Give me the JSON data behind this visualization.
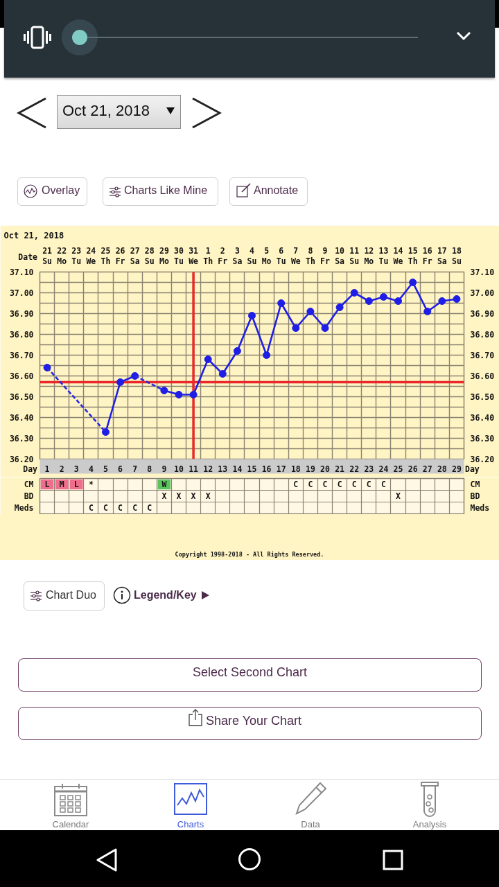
{
  "chart_data": [
    {
      "type": "other",
      "annotations": [
        "Oct 21, 2018",
        "Overlay",
        "Charts Like Mine",
        "Annotate"
      ]
    },
    {
      "type": "line",
      "title": "Oct 21, 2018",
      "xlabel": "Day",
      "x2label": "Date",
      "x": [
        1,
        2,
        3,
        4,
        5,
        6,
        7,
        8,
        9,
        10,
        11,
        12,
        13,
        14,
        15,
        16,
        17,
        18,
        19,
        20,
        21,
        22,
        23,
        24,
        25,
        26,
        27,
        28,
        29
      ],
      "xlim": [
        0.5,
        29.5
      ],
      "xticks": [
        1,
        2,
        3,
        4,
        5,
        6,
        7,
        8,
        9,
        10,
        11,
        12,
        13,
        14,
        15,
        16,
        17,
        18,
        19,
        20,
        21,
        22,
        23,
        24,
        25,
        26,
        27,
        28,
        29
      ],
      "x2lim": [
        "2018-10-20T12:00",
        "2018-11-18T12:00"
      ],
      "x2ticks": [
        {
          "value": "2018-10-21",
          "label": "21\nSu"
        },
        {
          "value": "2018-10-22",
          "label": "22\nMo"
        },
        {
          "value": "2018-10-23",
          "label": "23\nTu"
        },
        {
          "value": "2018-10-24",
          "label": "24\nWe"
        },
        {
          "value": "2018-10-25",
          "label": "25\nTh"
        },
        {
          "value": "2018-10-26",
          "label": "26\nFr"
        },
        {
          "value": "2018-10-27",
          "label": "27\nSa"
        },
        {
          "value": "2018-10-28",
          "label": "28\nSu"
        },
        {
          "value": "2018-10-29",
          "label": "29\nMo"
        },
        {
          "value": "2018-10-30",
          "label": "30\nTu"
        },
        {
          "value": "2018-10-31",
          "label": "31\nWe"
        },
        {
          "value": "2018-11-01",
          "label": "1\nTh"
        },
        {
          "value": "2018-11-02",
          "label": "2\nFr"
        },
        {
          "value": "2018-11-03",
          "label": "3\nSa"
        },
        {
          "value": "2018-11-04",
          "label": "4\nSu"
        },
        {
          "value": "2018-11-05",
          "label": "5\nMo"
        },
        {
          "value": "2018-11-06",
          "label": "6\nTu"
        },
        {
          "value": "2018-11-07",
          "label": "7\nWe"
        },
        {
          "value": "2018-11-08",
          "label": "8\nTh"
        },
        {
          "value": "2018-11-09",
          "label": "9\nFr"
        },
        {
          "value": "2018-11-10",
          "label": "10\nSa"
        },
        {
          "value": "2018-11-11",
          "label": "11\nSu"
        },
        {
          "value": "2018-11-12",
          "label": "12\nMo"
        },
        {
          "value": "2018-11-13",
          "label": "13\nTu"
        },
        {
          "value": "2018-11-14",
          "label": "14\nWe"
        },
        {
          "value": "2018-11-15",
          "label": "15\nTh"
        },
        {
          "value": "2018-11-16",
          "label": "16\nFr"
        },
        {
          "value": "2018-11-17",
          "label": "17\nSa"
        },
        {
          "value": "2018-11-18",
          "label": "18\nSu"
        }
      ],
      "ylim": [
        36.2,
        37.1
      ],
      "yticks": [
        {
          "value": 36.2,
          "label": "36.20"
        },
        {
          "value": 36.3,
          "label": "36.30"
        },
        {
          "value": 36.4,
          "label": "36.40"
        },
        {
          "value": 36.5,
          "label": "36.50"
        },
        {
          "value": 36.6,
          "label": "36.60"
        },
        {
          "value": 36.7,
          "label": "36.70"
        },
        {
          "value": 36.8,
          "label": "36.80"
        },
        {
          "value": 36.9,
          "label": "36.90"
        },
        {
          "value": 37.0,
          "label": "37.00"
        },
        {
          "value": 37.1,
          "label": "37.10"
        }
      ],
      "y2lim": [
        36.2,
        37.1
      ],
      "y2ticks": [
        {
          "value": 36.2,
          "label": "36.20"
        },
        {
          "value": 36.3,
          "label": "36.30"
        },
        {
          "value": 36.4,
          "label": "36.40"
        },
        {
          "value": 36.5,
          "label": "36.50"
        },
        {
          "value": 36.6,
          "label": "36.60"
        },
        {
          "value": 36.7,
          "label": "36.70"
        },
        {
          "value": 36.8,
          "label": "36.80"
        },
        {
          "value": 36.9,
          "label": "36.90"
        },
        {
          "value": 37.0,
          "label": "37.00"
        },
        {
          "value": 37.1,
          "label": "37.10"
        }
      ],
      "grid": true,
      "marker": "circle",
      "line_style": "solid",
      "series": [
        {
          "color": "#1e1ee6",
          "values": [
            36.64,
            null,
            null,
            null,
            36.33,
            36.57,
            36.6,
            null,
            36.53,
            36.51,
            36.51,
            36.68,
            36.61,
            36.72,
            36.89,
            36.7,
            36.95,
            36.83,
            36.91,
            36.83,
            36.93,
            37.0,
            36.96,
            36.98,
            36.96,
            37.05,
            36.91,
            36.96,
            36.97
          ]
        },
        {
          "color": "#2a2ae0",
          "x": [
            1,
            5,
            6,
            7,
            9
          ],
          "values": [
            36.64,
            36.33,
            null,
            36.6,
            36.53
          ],
          "line_style": "dashed",
          "marker": "none"
        }
      ],
      "ref_lines": [
        {
          "axis": "x",
          "value": 11,
          "color": "#e8282a"
        },
        {
          "axis": "y",
          "value": 36.57,
          "color": "#e8282a"
        }
      ]
    },
    {
      "type": "other",
      "categories": [
        null,
        null,
        null,
        null,
        null,
        null,
        null,
        null,
        null,
        null,
        null,
        null,
        null,
        null,
        null,
        null,
        null,
        null,
        null,
        null,
        null,
        null,
        null,
        null,
        null,
        null,
        null,
        null,
        null
      ],
      "y_categories": [
        "CM",
        "BD",
        "Meds"
      ],
      "y2_categories": [
        "CM",
        "BD",
        "Meds"
      ],
      "cell_labels": [
        [
          "L",
          "M",
          "L",
          "*",
          null,
          null,
          null,
          null,
          "W",
          null,
          null,
          null,
          null,
          null,
          null,
          null,
          null,
          "C",
          "C",
          "C",
          "C",
          "C",
          "C",
          "C",
          null,
          null,
          null,
          null,
          null
        ],
        [
          null,
          null,
          null,
          null,
          null,
          null,
          null,
          null,
          "X",
          "X",
          "X",
          "X",
          null,
          null,
          null,
          null,
          null,
          null,
          null,
          null,
          null,
          null,
          null,
          null,
          "X",
          null,
          null,
          null,
          null
        ],
        [
          null,
          null,
          null,
          "C",
          "C",
          "C",
          "C",
          "C",
          null,
          null,
          null,
          null,
          null,
          null,
          null,
          null,
          null,
          null,
          null,
          null,
          null,
          null,
          null,
          null,
          null,
          null,
          null,
          null,
          null
        ]
      ],
      "colors": [
        [
          "#ee6e8c",
          "#ee6e8c",
          "#ee6e8c",
          null,
          null,
          null,
          null,
          null,
          "#5cc45c",
          null,
          null,
          null,
          null,
          null,
          null,
          null,
          null,
          null,
          null,
          null,
          null,
          null,
          null,
          null,
          null,
          null,
          null,
          null,
          null
        ],
        [
          null,
          null,
          null,
          null,
          null,
          null,
          null,
          null,
          null,
          null,
          null,
          null,
          null,
          null,
          null,
          null,
          null,
          null,
          null,
          null,
          null,
          null,
          null,
          null,
          null,
          null,
          null,
          null,
          null
        ],
        [
          null,
          null,
          null,
          null,
          null,
          null,
          null,
          null,
          null,
          null,
          null,
          null,
          null,
          null,
          null,
          null,
          null,
          null,
          null,
          null,
          null,
          null,
          null,
          null,
          null,
          null,
          null,
          null,
          null
        ]
      ],
      "annotations": [
        "Copyright 1998-2018 - All Rights Reserved."
      ]
    },
    {
      "type": "other",
      "annotations": [
        "Chart Duo",
        "Legend/Key",
        "Select Second Chart",
        "Share Your Chart",
        "Calendar",
        "Charts",
        "Data",
        "Analysis"
      ]
    }
  ]
}
